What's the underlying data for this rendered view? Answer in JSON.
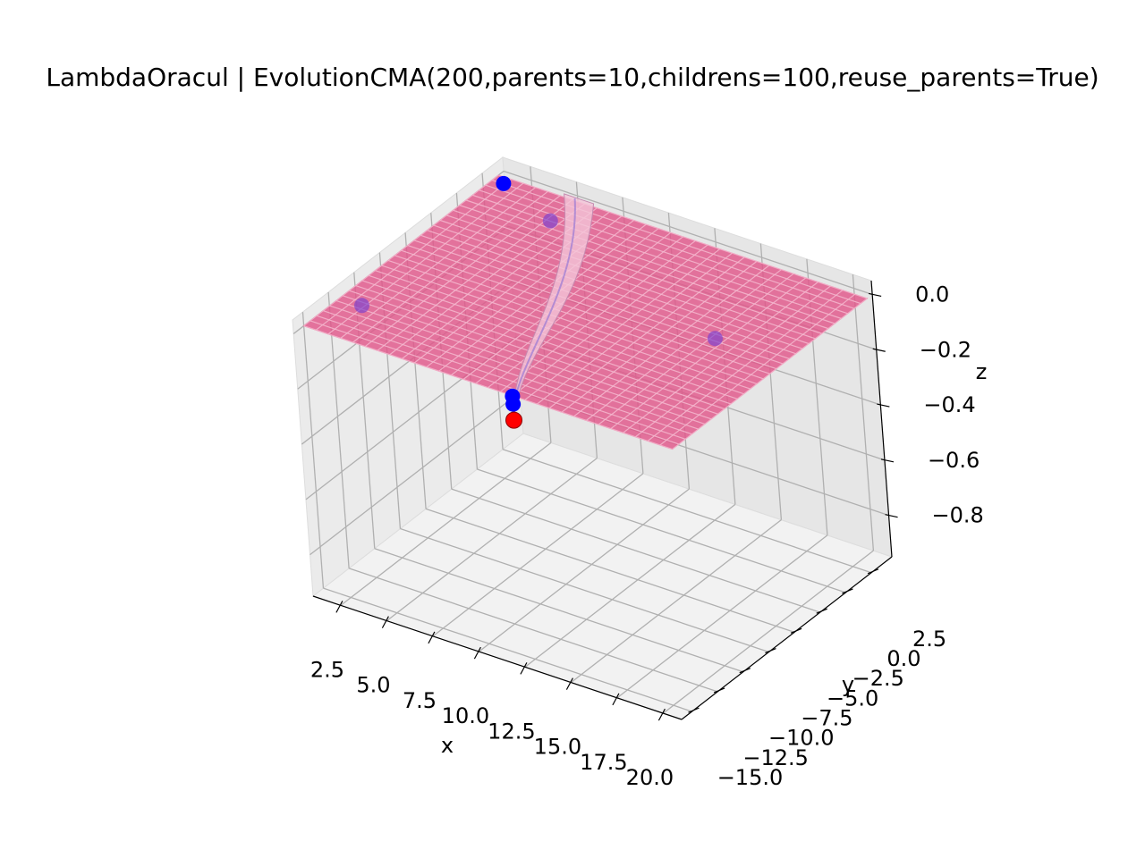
{
  "chart_data": {
    "type": "surface3d",
    "title": "LambdaOracul | EvolutionCMA(200,parents=10,childrens=100,reuse_parents=True)",
    "xlabel": "x",
    "ylabel": "y",
    "zlabel": "z",
    "xlim": [
      1.0,
      21.0
    ],
    "ylim": [
      -16.0,
      4.5
    ],
    "zlim": [
      -0.95,
      0.05
    ],
    "xticks": [
      "2.5",
      "5.0",
      "7.5",
      "10.0",
      "12.5",
      "15.0",
      "17.5",
      "20.0"
    ],
    "yticks": [
      "−15.0",
      "−12.5",
      "−10.0",
      "−7.5",
      "−5.0",
      "−2.5",
      "0.0",
      "2.5"
    ],
    "zticks": [
      "0.0",
      "−0.2",
      "−0.4",
      "−0.6",
      "−0.8"
    ],
    "grid": true,
    "surface": {
      "x_range": [
        1.0,
        21.0
      ],
      "y_range": [
        -15.0,
        4.0
      ],
      "plateau_z": 0.0,
      "min_z": -0.6,
      "color": "#e0578a",
      "grid_color": "#f5b9cf"
    },
    "points": [
      {
        "x": 1.6,
        "y": 3.4,
        "z": 0.0,
        "color": "#0000ff"
      },
      {
        "x": 2.2,
        "y": -11.5,
        "z": 0.0,
        "color": "#7a3fd0"
      },
      {
        "x": 5.2,
        "y": 1.5,
        "z": 0.0,
        "color": "#7a3fd0"
      },
      {
        "x": 17.2,
        "y": -4.0,
        "z": 0.0,
        "color": "#7a3fd0"
      },
      {
        "x": 5.2,
        "y": -3.2,
        "z": -0.5,
        "color": "#0000ff"
      },
      {
        "x": 4.9,
        "y": -2.7,
        "z": -0.55,
        "color": "#0000ff"
      },
      {
        "x": 5.0,
        "y": -2.9,
        "z": -0.6,
        "color": "#ff0000",
        "best": true
      }
    ]
  }
}
